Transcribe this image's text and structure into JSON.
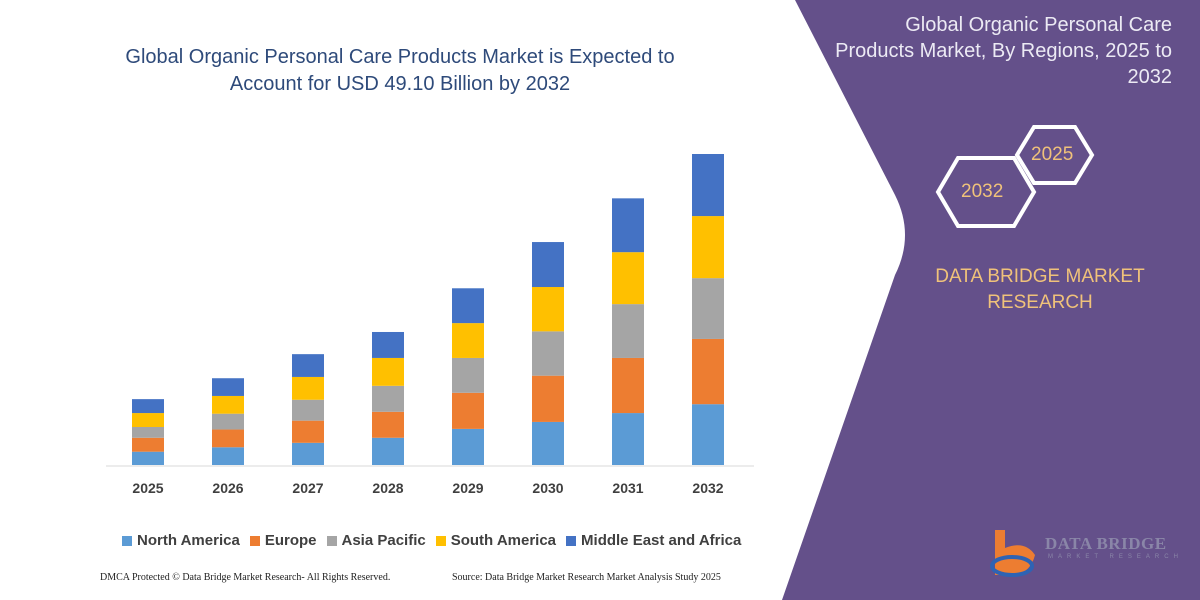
{
  "chart_data": {
    "type": "bar",
    "stacked": true,
    "title": "Global Organic Personal Care Products Market is Expected to Account for USD 49.10 Billion by 2032",
    "xlabel": "",
    "ylabel": "",
    "ylim": [
      0,
      49.1
    ],
    "grid": false,
    "legend_position": "bottom",
    "categories": [
      "2025",
      "2026",
      "2027",
      "2028",
      "2029",
      "2030",
      "2031",
      "2032"
    ],
    "series": [
      {
        "name": "North America",
        "color": "#5b9bd5",
        "values": [
          2.1,
          2.8,
          3.5,
          4.3,
          5.7,
          6.8,
          8.2,
          9.6
        ]
      },
      {
        "name": "Europe",
        "color": "#ed7d31",
        "values": [
          2.2,
          2.8,
          3.5,
          4.1,
          5.7,
          7.3,
          8.7,
          10.3
        ]
      },
      {
        "name": "Asia Pacific",
        "color": "#a5a5a5",
        "values": [
          1.7,
          2.5,
          3.3,
          4.1,
          5.5,
          7.0,
          8.5,
          9.6
        ]
      },
      {
        "name": "South America",
        "color": "#ffc000",
        "values": [
          2.2,
          2.8,
          3.6,
          4.4,
          5.5,
          7.0,
          8.2,
          9.8
        ]
      },
      {
        "name": "Middle East and Africa",
        "color": "#4472c4",
        "values": [
          2.2,
          2.8,
          3.6,
          4.1,
          5.5,
          7.1,
          8.5,
          9.8
        ]
      }
    ]
  },
  "side_panel": {
    "title": "Global Organic Personal Care Products Market, By Regions, 2025 to 2032",
    "hex_start": "2025",
    "hex_end": "2032",
    "brand": "DATA BRIDGE MARKET RESEARCH",
    "color": "#64508a",
    "brand_color": "#f0c27a"
  },
  "logo": {
    "text": "DATA BRIDGE",
    "sub": "MARKET RESEARCH"
  },
  "footer": {
    "copyright": "DMCA Protected © Data Bridge Market Research-  All Rights Reserved.",
    "source": "Source: Data Bridge Market Research  Market Analysis Study 2025"
  }
}
